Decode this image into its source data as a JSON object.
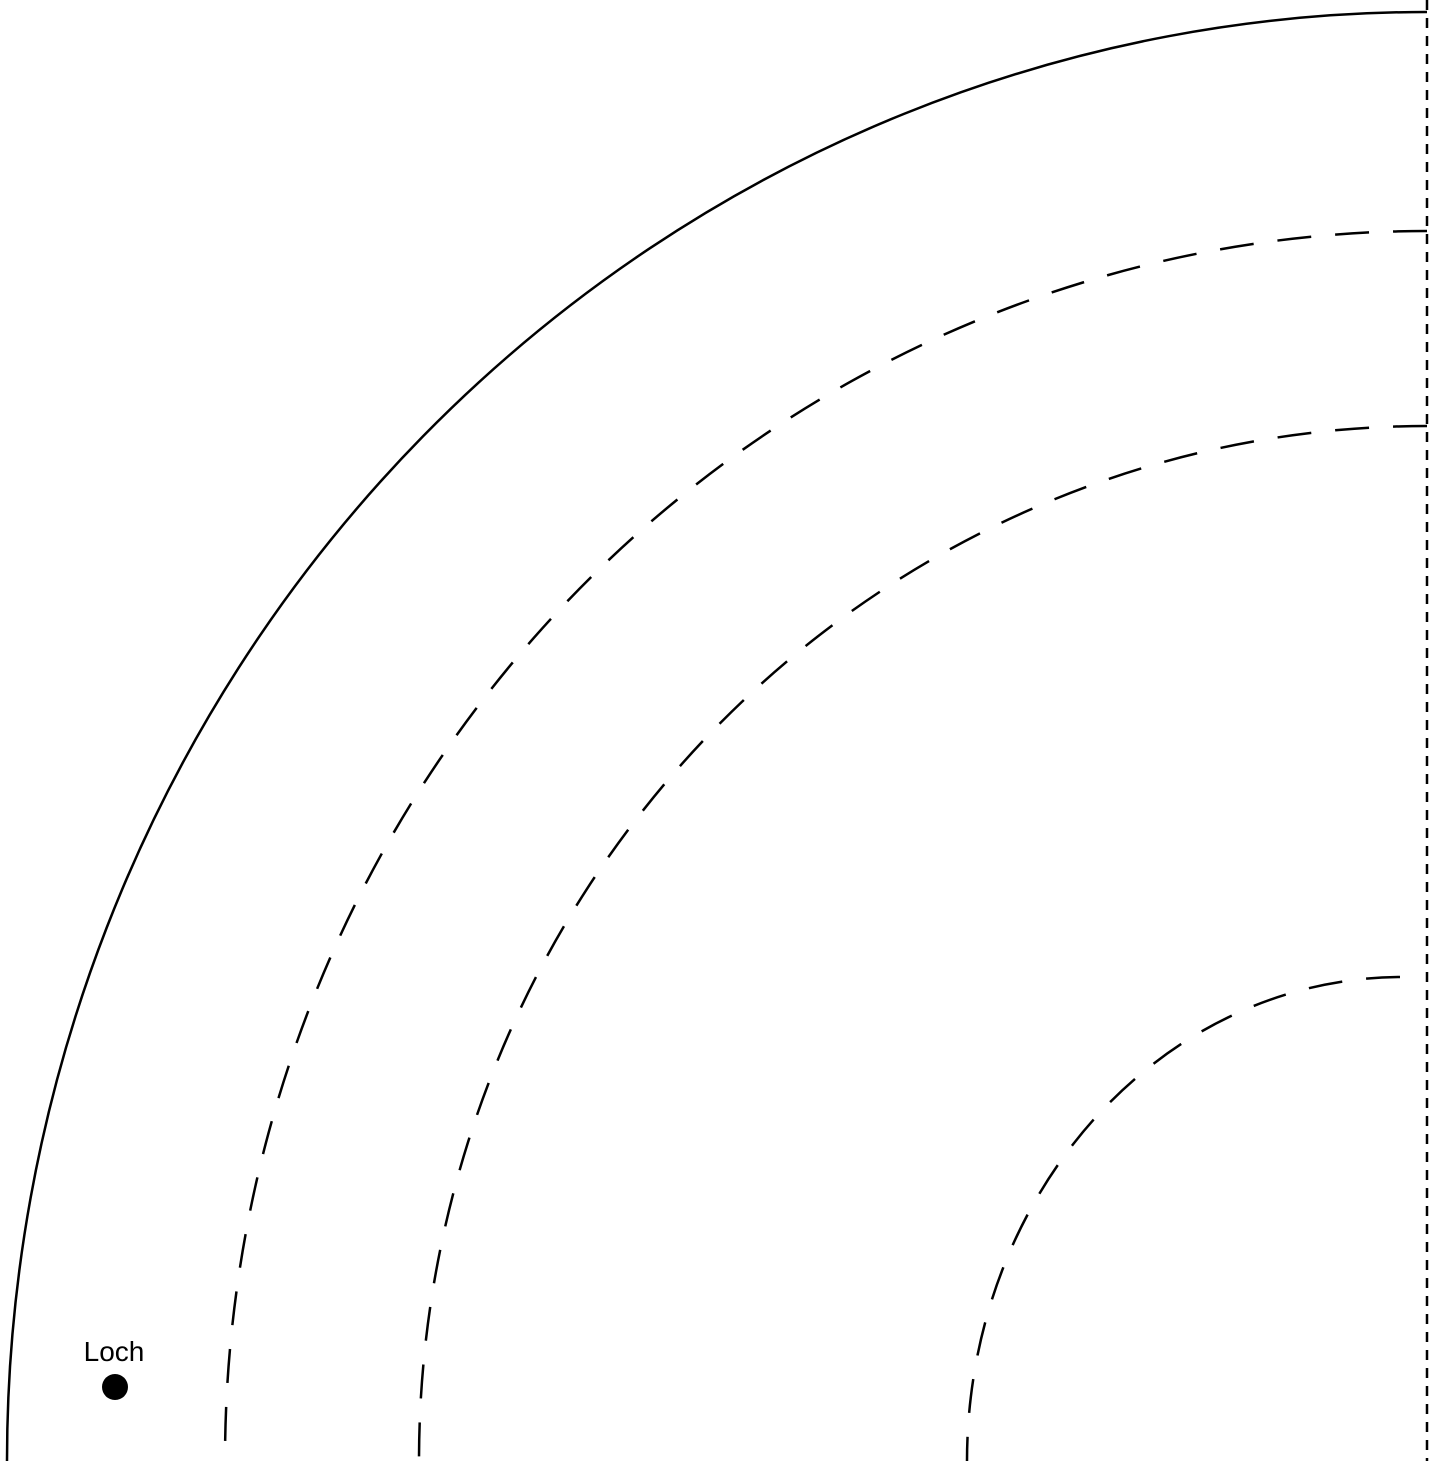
{
  "diagram": {
    "labels": {
      "hole": "Loch"
    },
    "colors": {
      "stroke": "#000000",
      "background": "#ffffff"
    }
  }
}
